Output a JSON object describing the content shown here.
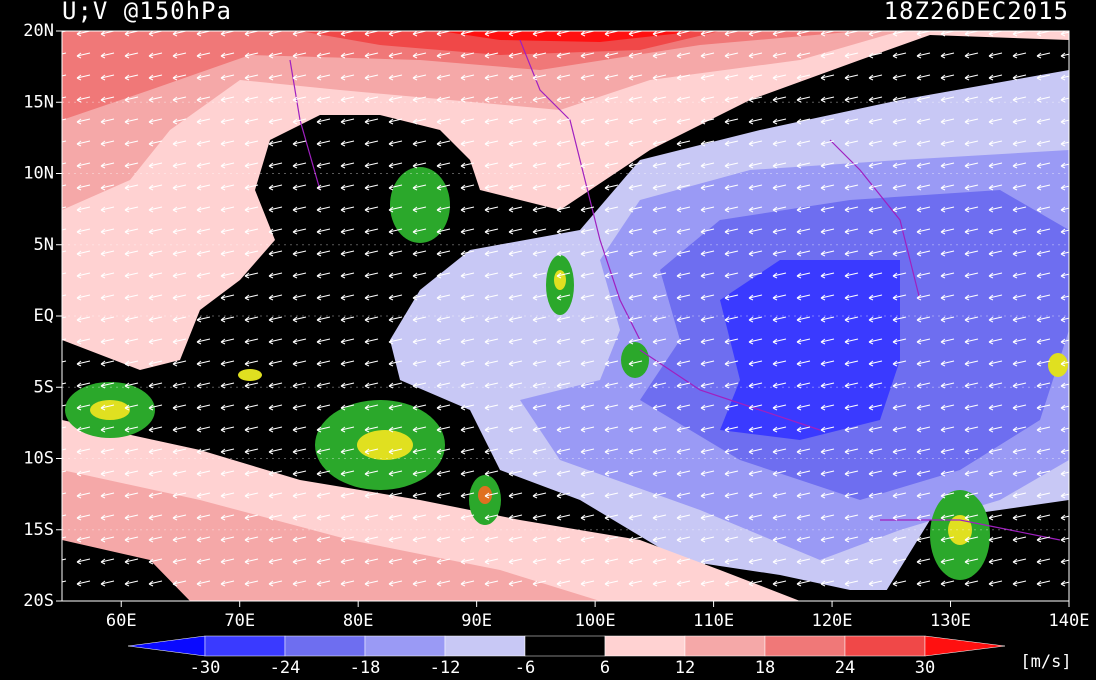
{
  "header": {
    "title": "U;V @150hPa",
    "time": "18Z26DEC2015"
  },
  "map": {
    "lon_range": [
      55,
      140
    ],
    "lat_range": [
      -20,
      20
    ],
    "x_ticks": [
      {
        "value": 60,
        "label": "60E"
      },
      {
        "value": 70,
        "label": "70E"
      },
      {
        "value": 80,
        "label": "80E"
      },
      {
        "value": 90,
        "label": "90E"
      },
      {
        "value": 100,
        "label": "100E"
      },
      {
        "value": 110,
        "label": "110E"
      },
      {
        "value": 120,
        "label": "120E"
      },
      {
        "value": 130,
        "label": "130E"
      },
      {
        "value": 140,
        "label": "140E"
      }
    ],
    "y_ticks": [
      {
        "value": 20,
        "label": "20N"
      },
      {
        "value": 15,
        "label": "15N"
      },
      {
        "value": 10,
        "label": "10N"
      },
      {
        "value": 5,
        "label": "5N"
      },
      {
        "value": 0,
        "label": "EQ"
      },
      {
        "value": -5,
        "label": "5S"
      },
      {
        "value": -10,
        "label": "10S"
      },
      {
        "value": -15,
        "label": "15S"
      },
      {
        "value": -20,
        "label": "20S"
      }
    ]
  },
  "colorbar": {
    "levels": [
      -30,
      -24,
      -18,
      -12,
      -6,
      6,
      12,
      18,
      24,
      30
    ],
    "colors": [
      "#0a0aff",
      "#3a3aff",
      "#6e6ef0",
      "#9a9af5",
      "#c8c8f5",
      "#000000",
      "#ffd2d2",
      "#f5a8a8",
      "#f07878",
      "#f04848",
      "#ff1010"
    ],
    "unit": "[m/s]"
  }
}
